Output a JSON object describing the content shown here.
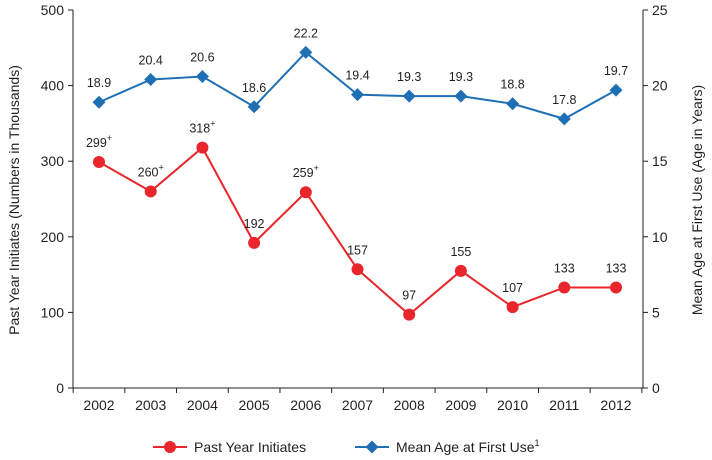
{
  "chart_data": {
    "type": "line",
    "categories": [
      "2002",
      "2003",
      "2004",
      "2005",
      "2006",
      "2007",
      "2008",
      "2009",
      "2010",
      "2011",
      "2012"
    ],
    "series": [
      {
        "name": "Past Year Initiates",
        "axis": "left",
        "color": "#e8262b",
        "marker": "circle",
        "values": [
          299,
          260,
          318,
          192,
          259,
          157,
          97,
          155,
          107,
          133,
          133
        ],
        "labels": [
          "299",
          "260",
          "318",
          "192",
          "259",
          "157",
          "97",
          "155",
          "107",
          "133",
          "133"
        ],
        "label_superscripts": [
          "+",
          "+",
          "+",
          "",
          "+",
          "",
          "",
          "",
          "",
          "",
          ""
        ]
      },
      {
        "name": "Mean Age at First Use",
        "name_superscript": "1",
        "axis": "right",
        "color": "#1f6fb5",
        "marker": "diamond",
        "values": [
          18.9,
          20.4,
          20.6,
          18.6,
          22.2,
          19.4,
          19.3,
          19.3,
          18.8,
          17.8,
          19.7
        ],
        "labels": [
          "18.9",
          "20.4",
          "20.6",
          "18.6",
          "22.2",
          "19.4",
          "19.3",
          "19.3",
          "18.8",
          "17.8",
          "19.7"
        ]
      }
    ],
    "ylabel": "Past Year Initiates (Numbers in Thousands)",
    "y2label": "Mean Age at First Use (Age in Years)",
    "ylim": [
      0,
      500
    ],
    "y_ticks": [
      0,
      100,
      200,
      300,
      400,
      500
    ],
    "y2lim": [
      0,
      25
    ],
    "y2_ticks": [
      0,
      5,
      10,
      15,
      20,
      25
    ],
    "grid": false,
    "legend_position": "bottom"
  }
}
